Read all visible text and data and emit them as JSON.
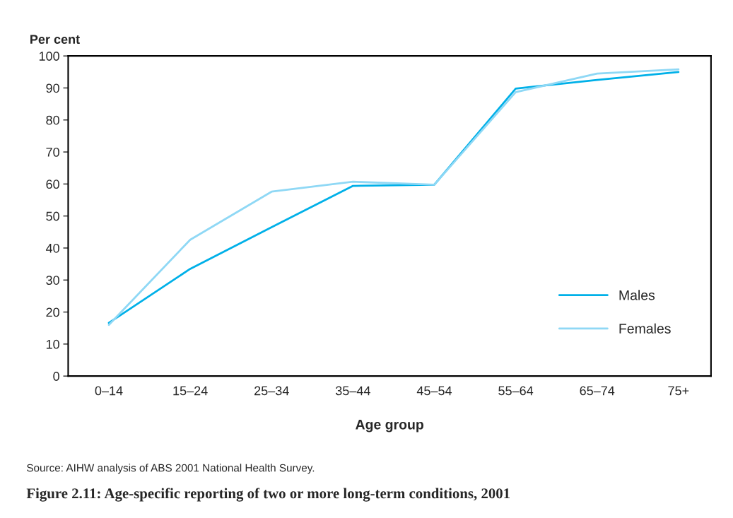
{
  "chart_data": {
    "type": "line",
    "title": "Figure 2.11: Age-specific reporting of two or more long-term conditions, 2001",
    "xlabel": "Age group",
    "ylabel": "Per cent",
    "categories": [
      "0–14",
      "15–24",
      "25–34",
      "35–44",
      "45–54",
      "55–64",
      "65–74",
      "75+"
    ],
    "series": [
      {
        "name": "Males",
        "color": "#00b0e8",
        "values": [
          16.6,
          33.5,
          46.5,
          59.4,
          59.8,
          89.8,
          92.5,
          95.0
        ]
      },
      {
        "name": "Females",
        "color": "#8fd8f5",
        "values": [
          16.0,
          42.6,
          57.6,
          60.7,
          59.8,
          88.7,
          94.5,
          95.8
        ]
      }
    ],
    "ylim": [
      0,
      100
    ],
    "yticks": [
      0,
      10,
      20,
      30,
      40,
      50,
      60,
      70,
      80,
      90,
      100
    ],
    "grid": false,
    "legend": "bottom right",
    "marker": "none",
    "line_style": "solid",
    "annotations": [
      "Source: AIHW analysis of ABS 2001 National Health Survey."
    ]
  }
}
